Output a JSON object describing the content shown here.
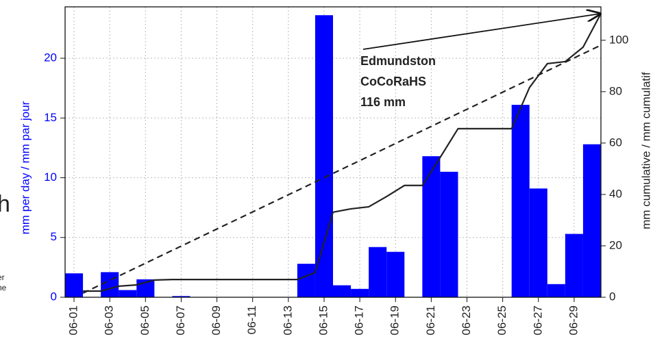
{
  "chart_data": {
    "type": "bar",
    "ylabel": "mm per day / mm par jour",
    "y2label": "mm cumulative / mm cumulatif",
    "annotation": [
      "Edmundston",
      "CoCoRaHS",
      "116 mm"
    ],
    "x": [
      1,
      2,
      3,
      4,
      5,
      6,
      7,
      8,
      9,
      10,
      11,
      12,
      13,
      14,
      15,
      16,
      17,
      18,
      19,
      20,
      21,
      22,
      23,
      24,
      25,
      26,
      27,
      28,
      29,
      30
    ],
    "xlim": [
      0.5,
      30.5
    ],
    "xticks": [
      {
        "value": 1,
        "label": "06-01"
      },
      {
        "value": 3,
        "label": "06-03"
      },
      {
        "value": 5,
        "label": "06-05"
      },
      {
        "value": 7,
        "label": "06-07"
      },
      {
        "value": 9,
        "label": "06-09"
      },
      {
        "value": 11,
        "label": "06-11"
      },
      {
        "value": 13,
        "label": "06-13"
      },
      {
        "value": 15,
        "label": "06-15"
      },
      {
        "value": 17,
        "label": "06-17"
      },
      {
        "value": 19,
        "label": "06-19"
      },
      {
        "value": 21,
        "label": "06-21"
      },
      {
        "value": 23,
        "label": "06-23"
      },
      {
        "value": 25,
        "label": "06-25"
      },
      {
        "value": 27,
        "label": "06-27"
      },
      {
        "value": 29,
        "label": "06-29"
      }
    ],
    "ylim": [
      0,
      24.3
    ],
    "yticks": [
      0,
      5,
      10,
      15,
      20
    ],
    "y2lim": [
      0,
      113
    ],
    "y2ticks": [
      0,
      20,
      40,
      60,
      80,
      100
    ],
    "grid": true,
    "series": [
      {
        "color": "#0000ff",
        "values": [
          2.0,
          0,
          2.1,
          0.6,
          1.5,
          0,
          0.1,
          0,
          0,
          0,
          0,
          0,
          0,
          2.8,
          23.6,
          1.0,
          0.7,
          4.2,
          3.8,
          0,
          11.8,
          10.5,
          0,
          0,
          0,
          16.1,
          9.1,
          1.1,
          5.3,
          12.8
        ]
      },
      {
        "color": "#222222",
        "axis": "y2",
        "values": [
          2.4,
          2.4,
          4.3,
          4.8,
          6.7,
          6.9,
          6.9,
          6.9,
          6.9,
          6.9,
          6.9,
          6.9,
          6.9,
          9.6,
          33.1,
          34.4,
          35.2,
          39.2,
          43.5,
          43.5,
          54.4,
          65.6,
          65.6,
          65.6,
          65.6,
          81.6,
          90.9,
          91.7,
          97.3,
          110.4
        ]
      },
      {
        "color": "#222222",
        "axis": "y2",
        "dashed": true,
        "x": [
          1,
          30
        ],
        "values": [
          1.6,
          98.1
        ]
      }
    ]
  },
  "cropped_text": [
    "h",
    "er",
    "ne"
  ]
}
